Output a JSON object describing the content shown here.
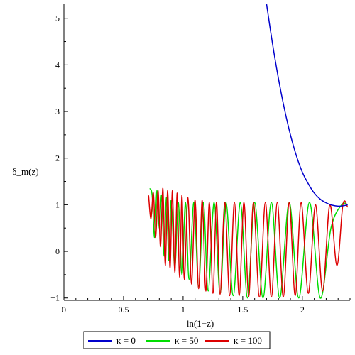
{
  "chart_data": {
    "type": "line",
    "title": "",
    "xlabel": "ln(1+z)",
    "ylabel": "δ_m(z)",
    "xlim": [
      0,
      2.4
    ],
    "ylim": [
      -1.05,
      5.3
    ],
    "xticks": [
      0,
      0.5,
      1,
      1.5,
      2
    ],
    "xtick_labels": [
      "0",
      "0.5",
      "1",
      "1.5",
      "2"
    ],
    "yticks": [
      -1,
      0,
      1,
      2,
      3,
      4,
      5
    ],
    "ytick_labels": [
      "−1",
      "0",
      "1",
      "2",
      "3",
      "4",
      "5"
    ],
    "grid": false,
    "legend": "bottom",
    "series": [
      {
        "name": "κ = 0",
        "color": "#0000cc",
        "x": [
          1.7,
          1.75,
          1.8,
          1.85,
          1.9,
          1.95,
          2.0,
          2.05,
          2.1,
          2.15,
          2.2,
          2.25,
          2.3,
          2.35,
          2.38
        ],
        "y": [
          5.3,
          4.45,
          3.7,
          3.05,
          2.5,
          2.05,
          1.7,
          1.45,
          1.25,
          1.12,
          1.04,
          0.99,
          0.97,
          0.98,
          1.0
        ]
      },
      {
        "name": "κ = 50",
        "color": "#00dd00",
        "x": [
          0.72,
          0.74,
          0.76,
          0.78,
          0.8,
          0.82,
          0.84,
          0.86,
          0.88,
          0.9,
          0.93,
          0.96,
          0.99,
          1.02,
          1.05,
          1.09,
          1.13,
          1.17,
          1.21,
          1.26,
          1.31,
          1.36,
          1.42,
          1.48,
          1.54,
          1.6,
          1.67,
          1.74,
          1.81,
          1.89,
          1.97,
          2.06,
          2.15,
          2.24,
          2.33,
          2.38
        ],
        "y": [
          1.35,
          1.2,
          0.3,
          1.3,
          0.5,
          1.2,
          -0.1,
          1.15,
          -0.2,
          1.1,
          -0.35,
          1.05,
          -0.5,
          1.05,
          -0.6,
          1.05,
          -0.75,
          1.05,
          -0.85,
          1.05,
          -0.9,
          1.05,
          -0.95,
          1.05,
          -1.0,
          1.05,
          -1.0,
          1.05,
          -1.0,
          1.05,
          -1.0,
          1.05,
          -1.0,
          0.5,
          1.0,
          1.0
        ]
      },
      {
        "name": "κ = 100",
        "color": "#dd0000",
        "x": [
          0.71,
          0.73,
          0.75,
          0.77,
          0.79,
          0.81,
          0.83,
          0.85,
          0.87,
          0.89,
          0.91,
          0.93,
          0.95,
          0.97,
          0.99,
          1.01,
          1.04,
          1.07,
          1.1,
          1.13,
          1.16,
          1.19,
          1.22,
          1.25,
          1.28,
          1.31,
          1.35,
          1.39,
          1.43,
          1.47,
          1.51,
          1.55,
          1.59,
          1.64,
          1.69,
          1.74,
          1.79,
          1.84,
          1.89,
          1.94,
          1.99,
          2.05,
          2.11,
          2.17,
          2.23,
          2.29,
          2.34,
          2.38
        ],
        "y": [
          1.2,
          0.7,
          1.25,
          0.3,
          1.3,
          0.1,
          1.35,
          -0.3,
          1.3,
          -0.35,
          1.3,
          -0.45,
          1.25,
          -0.55,
          1.2,
          -0.6,
          1.15,
          -0.7,
          1.1,
          -0.8,
          1.1,
          -0.85,
          1.05,
          -0.9,
          1.05,
          -0.92,
          1.05,
          -0.95,
          1.05,
          -0.95,
          1.05,
          -0.97,
          1.05,
          -0.98,
          1.05,
          -0.98,
          1.05,
          -0.98,
          1.05,
          -0.95,
          1.05,
          -0.9,
          1.0,
          -0.85,
          1.0,
          -0.3,
          1.0,
          0.95
        ]
      }
    ]
  }
}
